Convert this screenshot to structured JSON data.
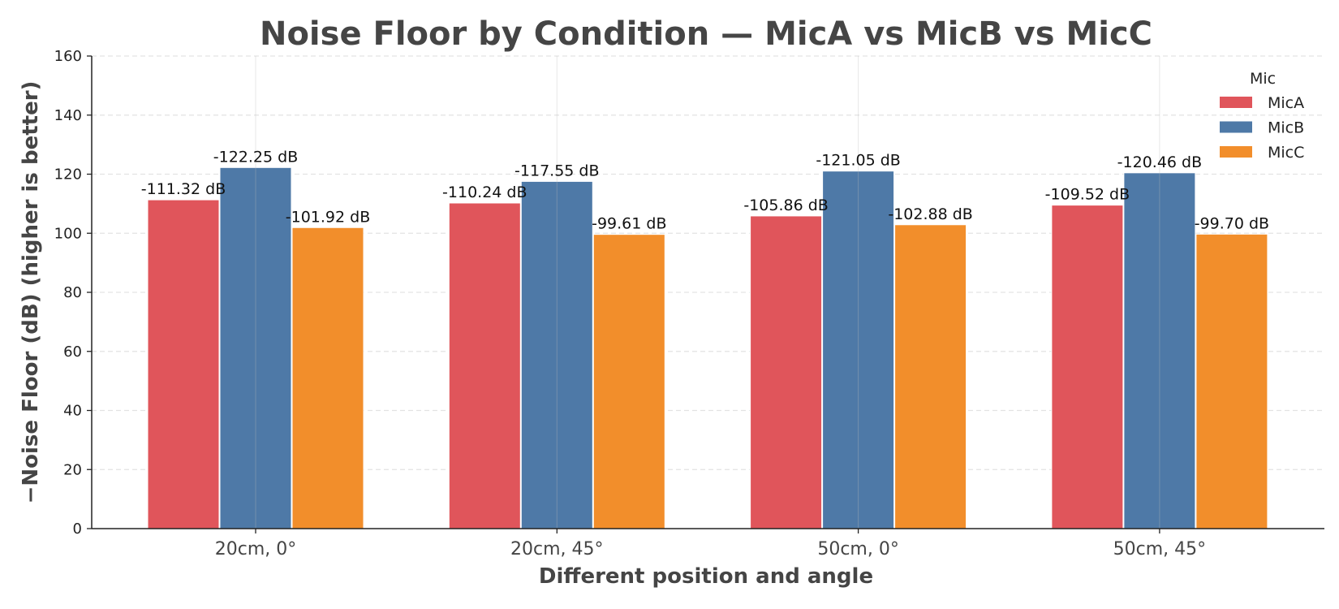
{
  "chart_data": {
    "type": "bar",
    "title": "Noise Floor by Condition — MicA vs MicB vs MicC",
    "xlabel": "Different position and angle",
    "ylabel": "−Noise Floor (dB)  (higher is better)",
    "categories": [
      "20cm, 0°",
      "20cm, 45°",
      "50cm, 0°",
      "50cm, 45°"
    ],
    "ylim": [
      0,
      160
    ],
    "yticks": [
      0,
      20,
      40,
      60,
      80,
      100,
      120,
      140,
      160
    ],
    "grid": true,
    "legend": {
      "title": "Mic",
      "position": "top-right"
    },
    "series": [
      {
        "name": "MicA",
        "color": "#e0555b",
        "values": [
          111.32,
          110.24,
          105.86,
          109.52
        ],
        "labels": [
          "-111.32 dB",
          "-110.24 dB",
          "-105.86 dB",
          "-109.52 dB"
        ]
      },
      {
        "name": "MicB",
        "color": "#4e79a7",
        "values": [
          122.25,
          117.55,
          121.05,
          120.46
        ],
        "labels": [
          "-122.25 dB",
          "-117.55 dB",
          "-121.05 dB",
          "-120.46 dB"
        ]
      },
      {
        "name": "MicC",
        "color": "#f28e2b",
        "values": [
          101.92,
          99.61,
          102.88,
          99.7
        ],
        "labels": [
          "-101.92 dB",
          "-99.61 dB",
          "-102.88 dB",
          "-99.70 dB"
        ]
      }
    ]
  }
}
